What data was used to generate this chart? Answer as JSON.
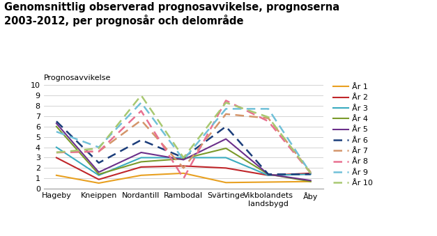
{
  "title": "Genomsnittlig observerad prognosavvikelse, prognoserna\n2003-2012, per prognosår och delområde",
  "ylabel": "Prognosavvikelse",
  "categories": [
    "Hageby",
    "Kneippen",
    "Nordantill",
    "Rambodal",
    "Svärtinge",
    "Vikbolandets\nlandsbygd",
    "Åby"
  ],
  "ylim": [
    0,
    10
  ],
  "yticks": [
    0,
    1,
    2,
    3,
    4,
    5,
    6,
    7,
    8,
    9,
    10
  ],
  "series": [
    {
      "label": "År 1",
      "color": "#E8A020",
      "linestyle": "solid",
      "linewidth": 1.5,
      "values": [
        1.3,
        0.55,
        1.3,
        1.5,
        0.6,
        0.65,
        0.7
      ]
    },
    {
      "label": "År 2",
      "color": "#C0262A",
      "linestyle": "solid",
      "linewidth": 1.5,
      "values": [
        3.0,
        0.9,
        2.1,
        2.2,
        2.0,
        1.3,
        1.5
      ]
    },
    {
      "label": "År 3",
      "color": "#3AABBF",
      "linestyle": "solid",
      "linewidth": 1.5,
      "values": [
        4.0,
        1.3,
        3.0,
        3.0,
        3.0,
        1.3,
        1.4
      ]
    },
    {
      "label": "År 4",
      "color": "#7A9A2A",
      "linestyle": "solid",
      "linewidth": 1.5,
      "values": [
        6.0,
        1.4,
        2.6,
        2.9,
        3.9,
        1.4,
        0.7
      ]
    },
    {
      "label": "År 5",
      "color": "#6B2F8A",
      "linestyle": "solid",
      "linewidth": 1.5,
      "values": [
        6.3,
        1.6,
        3.5,
        2.8,
        4.8,
        1.4,
        0.8
      ]
    },
    {
      "label": "År 6",
      "color": "#1B3D7A",
      "linestyle": "dashed",
      "linewidth": 1.8,
      "values": [
        6.5,
        2.5,
        4.7,
        3.0,
        6.0,
        1.4,
        1.4
      ]
    },
    {
      "label": "År 7",
      "color": "#D4956A",
      "linestyle": "dashed",
      "linewidth": 1.8,
      "values": [
        3.5,
        3.6,
        6.6,
        2.0,
        7.2,
        6.8,
        1.6
      ]
    },
    {
      "label": "År 8",
      "color": "#E87090",
      "linestyle": "dashed",
      "linewidth": 1.8,
      "values": [
        3.5,
        3.6,
        7.5,
        1.0,
        8.5,
        6.5,
        1.5
      ]
    },
    {
      "label": "År 9",
      "color": "#70C0D8",
      "linestyle": "dashed",
      "linewidth": 1.8,
      "values": [
        5.5,
        4.0,
        8.3,
        2.8,
        7.7,
        7.7,
        1.5
      ]
    },
    {
      "label": "År 10",
      "color": "#A8C870",
      "linestyle": "dashed",
      "linewidth": 1.8,
      "values": [
        3.5,
        3.9,
        9.0,
        3.0,
        8.3,
        6.9,
        1.5
      ]
    }
  ],
  "background_color": "#ffffff",
  "title_fontsize": 10.5,
  "axis_fontsize": 8,
  "legend_fontsize": 8,
  "figsize": [
    6.27,
    3.39
  ],
  "dpi": 100
}
